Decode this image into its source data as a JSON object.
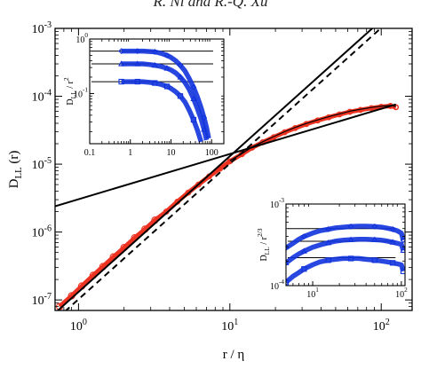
{
  "header": {
    "running_head": "R. Ni and R.-Q. Xu"
  },
  "chart_data": [
    {
      "type": "scatter",
      "title": "",
      "xlabel": "r / η",
      "ylabel": "D_LL (r)",
      "xscale": "log",
      "yscale": "log",
      "xlim": [
        0.7,
        160
      ],
      "ylim": [
        7e-08,
        0.001
      ],
      "x_ticks": [
        {
          "v": 1,
          "label": "10^0"
        },
        {
          "v": 10,
          "label": "10^1"
        },
        {
          "v": 100,
          "label": "10^2"
        }
      ],
      "y_ticks": [
        {
          "v": 1e-07,
          "label": "10^-7"
        },
        {
          "v": 1e-06,
          "label": "10^-6"
        },
        {
          "v": 1e-05,
          "label": "10^-5"
        },
        {
          "v": 0.0001,
          "label": "10^-4"
        },
        {
          "v": 0.001,
          "label": "10^-3"
        }
      ],
      "series": [
        {
          "kind": "markers",
          "marker": "circle",
          "color": "#ee3322",
          "x": [
            0.75,
            0.9,
            1.05,
            1.25,
            1.45,
            1.7,
            2.0,
            2.35,
            2.75,
            3.2,
            3.8,
            4.5,
            5.3,
            6.2,
            7.3,
            8.6,
            10,
            12,
            14,
            16.5,
            19.5,
            23,
            27,
            32,
            38,
            45,
            53,
            62,
            73,
            86,
            100,
            115,
            125
          ],
          "y": [
            8e-08,
            1.15e-07,
            1.6e-07,
            2.3e-07,
            3.1e-07,
            4.3e-07,
            5.9e-07,
            8.2e-07,
            1.1e-06,
            1.5e-06,
            2e-06,
            2.8e-06,
            3.8e-06,
            5e-06,
            6.6e-06,
            8.6e-06,
            1.1e-05,
            1.4e-05,
            1.75e-05,
            2.1e-05,
            2.5e-05,
            2.95e-05,
            3.4e-05,
            3.9e-05,
            4.4e-05,
            4.9e-05,
            5.4e-05,
            5.9e-05,
            6.3e-05,
            6.7e-05,
            7e-05,
            7.2e-05,
            6.9e-05
          ]
        },
        {
          "kind": "line",
          "style": "solid",
          "color": "#000000",
          "x": [
            0.72,
            160
          ],
          "y": [
            6.8e-08,
            0.00336
          ]
        },
        {
          "kind": "line",
          "style": "dashed",
          "color": "#000000",
          "x": [
            0.72,
            160
          ],
          "y": [
            5.3e-08,
            0.0026
          ]
        },
        {
          "kind": "line",
          "style": "solid",
          "color": "#000000",
          "x": [
            0.7,
            125
          ],
          "y": [
            2.4e-06,
            7.6e-05
          ]
        }
      ]
    },
    {
      "type": "scatter",
      "title": "",
      "xlabel": "",
      "ylabel": "D_LL / r^2",
      "xscale": "log",
      "yscale": "log",
      "xlim": [
        0.1,
        200
      ],
      "ylim": [
        0.012,
        1.0
      ],
      "x_ticks": [
        {
          "v": 0.1,
          "label": "0.1"
        },
        {
          "v": 1,
          "label": "1"
        },
        {
          "v": 10,
          "label": "10"
        },
        {
          "v": 100,
          "label": "100"
        }
      ],
      "y_ticks": [
        {
          "v": 0.1,
          "label": "10^-1"
        },
        {
          "v": 1,
          "label": "10^0"
        }
      ],
      "plateaus": [
        0.6,
        0.35,
        0.165
      ],
      "series": [
        {
          "marker": "diamond",
          "color": "#1133dd",
          "x": [
            0.6,
            0.8,
            1,
            1.5,
            2,
            3,
            4,
            5,
            6,
            8,
            10,
            13,
            17,
            22,
            28,
            36,
            45,
            55,
            65,
            75,
            85
          ],
          "y": [
            0.6,
            0.6,
            0.6,
            0.6,
            0.6,
            0.59,
            0.58,
            0.56,
            0.54,
            0.5,
            0.46,
            0.4,
            0.33,
            0.26,
            0.19,
            0.13,
            0.085,
            0.055,
            0.036,
            0.024,
            0.015
          ]
        },
        {
          "marker": "triangle",
          "color": "#1133dd",
          "x": [
            0.6,
            0.8,
            1,
            1.5,
            2,
            3,
            4,
            5,
            6,
            8,
            10,
            13,
            17,
            22,
            28,
            36,
            45,
            55,
            65,
            75
          ],
          "y": [
            0.35,
            0.35,
            0.35,
            0.35,
            0.35,
            0.34,
            0.33,
            0.32,
            0.31,
            0.29,
            0.27,
            0.24,
            0.2,
            0.16,
            0.12,
            0.08,
            0.052,
            0.034,
            0.022,
            0.014
          ]
        },
        {
          "marker": "square",
          "color": "#1133dd",
          "x": [
            0.6,
            0.8,
            1,
            1.5,
            2,
            3,
            4,
            5,
            6,
            8,
            10,
            13,
            17,
            22,
            28,
            36,
            45,
            55
          ],
          "y": [
            0.165,
            0.165,
            0.165,
            0.165,
            0.165,
            0.16,
            0.156,
            0.15,
            0.145,
            0.135,
            0.124,
            0.108,
            0.09,
            0.07,
            0.05,
            0.033,
            0.021,
            0.013
          ]
        }
      ]
    },
    {
      "type": "scatter",
      "title": "",
      "xlabel": "",
      "ylabel": "D_LL / r^2/3",
      "xscale": "log",
      "yscale": "log",
      "xlim": [
        5,
        110
      ],
      "ylim": [
        0.0001,
        0.001
      ],
      "x_ticks": [
        {
          "v": 10,
          "label": "10^1"
        },
        {
          "v": 100,
          "label": "10^2"
        }
      ],
      "y_ticks": [
        {
          "v": 0.0001,
          "label": "10^-4"
        },
        {
          "v": 0.001,
          "label": "10^-3"
        }
      ],
      "plateaus": [
        0.0005,
        0.00035,
        0.00022
      ],
      "series": [
        {
          "marker": "diamond",
          "color": "#1133dd",
          "x": [
            5,
            6,
            7,
            8,
            10,
            12,
            15,
            18,
            22,
            27,
            33,
            40,
            50,
            60,
            70,
            80,
            90,
            100,
            105
          ],
          "y": [
            0.00029,
            0.00033,
            0.00037,
            0.0004,
            0.00044,
            0.00047,
            0.00049,
            0.00051,
            0.00052,
            0.00053,
            0.000535,
            0.000535,
            0.00053,
            0.00052,
            0.000505,
            0.00049,
            0.00047,
            0.00044,
            0.00036
          ]
        },
        {
          "marker": "triangle",
          "color": "#1133dd",
          "x": [
            5,
            6,
            7,
            8,
            10,
            12,
            15,
            18,
            22,
            27,
            33,
            40,
            50,
            60,
            70,
            80,
            90,
            100,
            105
          ],
          "y": [
            0.00019,
            0.00022,
            0.000245,
            0.000265,
            0.000295,
            0.000315,
            0.000335,
            0.00035,
            0.00036,
            0.000365,
            0.00037,
            0.00037,
            0.000365,
            0.00036,
            0.00035,
            0.00034,
            0.00033,
            0.00032,
            0.00027
          ]
        },
        {
          "marker": "square",
          "color": "#1133dd",
          "x": [
            5,
            6,
            7,
            8,
            10,
            12,
            15,
            18,
            22,
            27,
            33,
            40,
            50,
            60,
            70,
            80,
            90,
            100,
            105
          ],
          "y": [
            0.00011,
            0.00013,
            0.000145,
            0.00016,
            0.00018,
            0.000195,
            0.000205,
            0.00021,
            0.000215,
            0.000215,
            0.000215,
            0.00021,
            0.000205,
            0.0002,
            0.000195,
            0.00019,
            0.000185,
            0.00018,
            0.00015
          ]
        }
      ]
    }
  ]
}
